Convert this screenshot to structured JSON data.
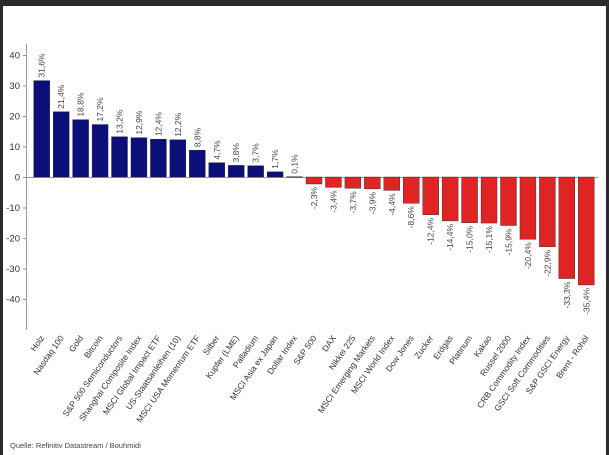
{
  "chart_data": {
    "type": "bar",
    "title": "",
    "xlabel": "",
    "ylabel": "",
    "ylim": [
      -50,
      46
    ],
    "yticks": [
      40,
      30,
      20,
      10,
      0,
      -10,
      -20,
      -30,
      -40
    ],
    "grid": false,
    "legend": "none",
    "colors": {
      "positive": "#0b0f7a",
      "negative": "#e02424",
      "axis": "#9a9a9a"
    },
    "bars": [
      {
        "category": "Holz",
        "value": 31.6,
        "label": "31,6%"
      },
      {
        "category": "Nasdaq 100",
        "value": 21.4,
        "label": "21,4%"
      },
      {
        "category": "Gold",
        "value": 18.8,
        "label": "18,8%"
      },
      {
        "category": "Bitcoin",
        "value": 17.2,
        "label": "17,2%"
      },
      {
        "category": "S&P 500 Semiconductors",
        "value": 13.2,
        "label": "13,2%"
      },
      {
        "category": "Shanghai Composite Index",
        "value": 12.9,
        "label": "12,9%"
      },
      {
        "category": "MSCI Global Impact ETF",
        "value": 12.4,
        "label": "12,4%"
      },
      {
        "category": "US-Staatsanleihen (10)",
        "value": 12.2,
        "label": "12,2%"
      },
      {
        "category": "MSCI USA Momentum ETF",
        "value": 8.8,
        "label": "8,8%"
      },
      {
        "category": "Silber",
        "value": 4.7,
        "label": "4,7%"
      },
      {
        "category": "Kupfer (LME)",
        "value": 3.8,
        "label": "3,8%"
      },
      {
        "category": "Palladium",
        "value": 3.7,
        "label": "3,7%"
      },
      {
        "category": "MSCI Asia ex Japan",
        "value": 1.7,
        "label": "1,7%"
      },
      {
        "category": "Dollar Index",
        "value": 0.1,
        "label": "0,1%"
      },
      {
        "category": "S&P 500",
        "value": -2.3,
        "label": "-2,3%"
      },
      {
        "category": "DAX",
        "value": -3.4,
        "label": "-3,4%"
      },
      {
        "category": "Nikkei 225",
        "value": -3.7,
        "label": "-3,7%"
      },
      {
        "category": "MSCI Emerging Markets",
        "value": -3.9,
        "label": "-3,9%"
      },
      {
        "category": "MSCI World Index",
        "value": -4.4,
        "label": "-4,4%"
      },
      {
        "category": "Dow Jones",
        "value": -8.6,
        "label": "-8,6%"
      },
      {
        "category": "Zucker",
        "value": -12.4,
        "label": "-12,4%"
      },
      {
        "category": "Erdgas",
        "value": -14.4,
        "label": "-14,4%"
      },
      {
        "category": "Platinum",
        "value": -15.0,
        "label": "-15,0%"
      },
      {
        "category": "Kakao",
        "value": -15.1,
        "label": "-15,1%"
      },
      {
        "category": "Russel 2000",
        "value": -15.9,
        "label": "-15,9%"
      },
      {
        "category": "CRB Commodity Index",
        "value": -20.4,
        "label": "-20,4%"
      },
      {
        "category": "GSCI Soft Commodities",
        "value": -22.9,
        "label": "-22,9%"
      },
      {
        "category": "S&P GSCI Energy",
        "value": -33.3,
        "label": "-33,3%"
      },
      {
        "category": "Brent - Rohöl",
        "value": -35.4,
        "label": "-35,4%"
      }
    ]
  },
  "footer": {
    "source": "Quelle:  Refinitiv Datastream / Bouhmidi"
  }
}
